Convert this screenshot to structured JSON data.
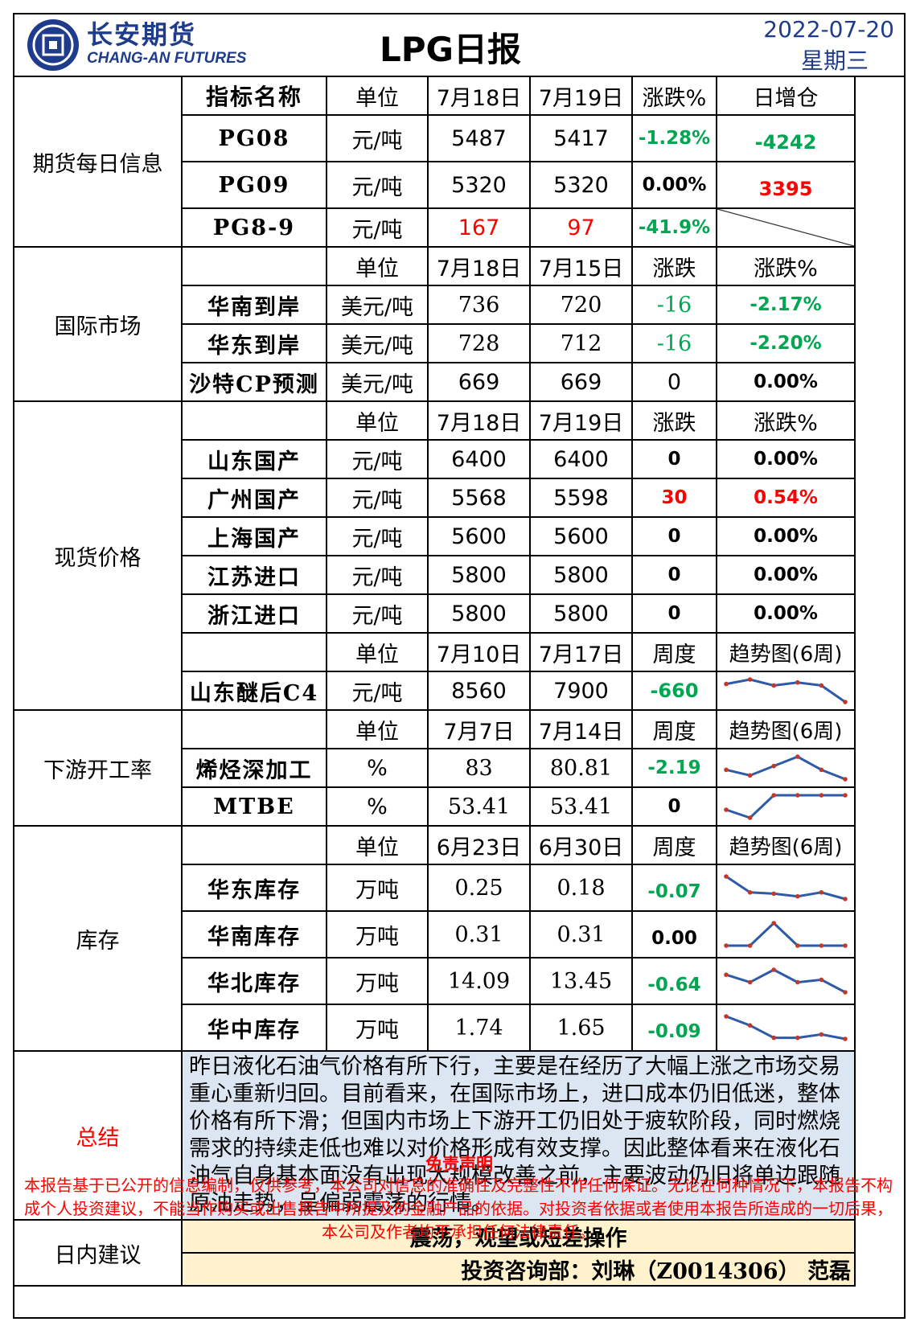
{
  "header": {
    "company_cn": "长安期货",
    "company_en": "CHANG-AN FUTURES",
    "title": "LPG日报",
    "date": "2022-07-20",
    "weekday": "星期三"
  },
  "colors": {
    "brand": "#1f3c8c",
    "up": "#ff0000",
    "down": "#00a651",
    "summary_bg": "#dce6f2",
    "advice_bg": "#fff2cc",
    "spark": "#2e5aa8",
    "spark_dot": "#c0392b"
  },
  "futures": {
    "section": "期货每日信息",
    "headers": [
      "指标名称",
      "单位",
      "7月18日",
      "7月19日",
      "涨跌%",
      "日增仓"
    ],
    "rows": [
      {
        "name": "PG08",
        "unit": "元/吨",
        "v1": "5487",
        "v2": "5417",
        "chg": "-1.28%",
        "oi": "-4242"
      },
      {
        "name": "PG09",
        "unit": "元/吨",
        "v1": "5320",
        "v2": "5320",
        "chg": "0.00%",
        "oi": "3395"
      },
      {
        "name": "PG8-9",
        "unit": "元/吨",
        "v1": "167",
        "v2": "97",
        "chg": "-41.9%",
        "oi": ""
      }
    ]
  },
  "intl": {
    "section": "国际市场",
    "headers": [
      "",
      "单位",
      "7月18日",
      "7月15日",
      "涨跌",
      "涨跌%"
    ],
    "rows": [
      {
        "name": "华南到岸",
        "unit": "美元/吨",
        "v1": "736",
        "v2": "720",
        "chg": "-16",
        "pct": "-2.17%"
      },
      {
        "name": "华东到岸",
        "unit": "美元/吨",
        "v1": "728",
        "v2": "712",
        "chg": "-16",
        "pct": "-2.20%"
      },
      {
        "name": "沙特CP预测",
        "unit": "美元/吨",
        "v1": "669",
        "v2": "669",
        "chg": "0",
        "pct": "0.00%"
      }
    ]
  },
  "spot": {
    "section": "现货价格",
    "headers": [
      "",
      "单位",
      "7月18日",
      "7月19日",
      "涨跌",
      "涨跌%"
    ],
    "rows": [
      {
        "name": "山东国产",
        "unit": "元/吨",
        "v1": "6400",
        "v2": "6400",
        "chg": "0",
        "pct": "0.00%"
      },
      {
        "name": "广州国产",
        "unit": "元/吨",
        "v1": "5568",
        "v2": "5598",
        "chg": "30",
        "pct": "0.54%"
      },
      {
        "name": "上海国产",
        "unit": "元/吨",
        "v1": "5600",
        "v2": "5600",
        "chg": "0",
        "pct": "0.00%"
      },
      {
        "name": "江苏进口",
        "unit": "元/吨",
        "v1": "5800",
        "v2": "5800",
        "chg": "0",
        "pct": "0.00%"
      },
      {
        "name": "浙江进口",
        "unit": "元/吨",
        "v1": "5800",
        "v2": "5800",
        "chg": "0",
        "pct": "0.00%"
      }
    ],
    "headers2": [
      "",
      "单位",
      "7月10日",
      "7月17日",
      "周度",
      "趋势图(6周)"
    ],
    "c4": {
      "name": "山东醚后C4",
      "unit": "元/吨",
      "v1": "8560",
      "v2": "7900",
      "chg": "-660",
      "trend": [
        0.6,
        0.9,
        0.5,
        0.7,
        0.5,
        -0.6
      ]
    }
  },
  "downstream": {
    "section": "下游开工率",
    "headers": [
      "",
      "单位",
      "7月7日",
      "7月14日",
      "周度",
      "趋势图(6周)"
    ],
    "rows": [
      {
        "name": "烯烃深加工",
        "unit": "%",
        "v1": "83",
        "v2": "80.81",
        "chg": "-2.19",
        "trend": [
          0.5,
          0.2,
          0.7,
          1.2,
          0.5,
          0.0
        ]
      },
      {
        "name": "MTBE",
        "unit": "%",
        "v1": "53.41",
        "v2": "53.41",
        "chg": "0",
        "trend": [
          0.5,
          0.0,
          1.4,
          1.4,
          1.4,
          1.4
        ]
      }
    ]
  },
  "inventory": {
    "section": "库存",
    "headers": [
      "",
      "单位",
      "6月23日",
      "6月30日",
      "周度",
      "趋势图(6周)"
    ],
    "rows": [
      {
        "name": "华东库存",
        "unit": "万吨",
        "v1": "0.25",
        "v2": "0.18",
        "chg": "-0.07",
        "trend": [
          1.0,
          0.4,
          0.35,
          0.25,
          0.4,
          0.15
        ]
      },
      {
        "name": "华南库存",
        "unit": "万吨",
        "v1": "0.31",
        "v2": "0.31",
        "chg": "0.00",
        "trend": [
          0.0,
          0.0,
          1.0,
          0.0,
          0.0,
          0.0
        ]
      },
      {
        "name": "华北库存",
        "unit": "万吨",
        "v1": "14.09",
        "v2": "13.45",
        "chg": "-0.64",
        "trend": [
          0.8,
          0.5,
          1.0,
          0.5,
          0.6,
          0.1
        ]
      },
      {
        "name": "华中库存",
        "unit": "万吨",
        "v1": "1.74",
        "v2": "1.65",
        "chg": "-0.09",
        "trend": [
          1.0,
          0.6,
          0.05,
          0.05,
          0.2,
          0.0
        ]
      }
    ]
  },
  "summary": {
    "label": "总结",
    "text": "昨日液化石油气价格有所下行，主要是在经历了大幅上涨之市场交易重心重新归回。目前看来，在国际市场上，进口成本仍旧低迷，整体价格有所下滑；但国内市场上下游开工仍旧处于疲软阶段，同时燃烧需求的持续走低也难以对价格形成有效支撑。因此整体看来在液化石油气自身基本面没有出现大规模改善之前，主要波动仍旧将单边跟随原油走势，呈偏弱震荡的行情。"
  },
  "advice": {
    "label": "日内建议",
    "text": "震荡，观望或短差操作",
    "analyst": "投资咨询部：刘琳（Z0014306）  范磊"
  },
  "disclaimer": {
    "title": "免责声明",
    "text": "本报告基于已公开的信息编制，仅供参考，本公司对信息的准确性及完整性不作任何保证。无论在何种情况下，本报告不构成个人投资建议，不能当作购买或出售报告中所提及的金融产品的依据。对投资者依据或者使用本报告所造成的一切后果，本公司及作者均不承担任何法律责任。"
  }
}
